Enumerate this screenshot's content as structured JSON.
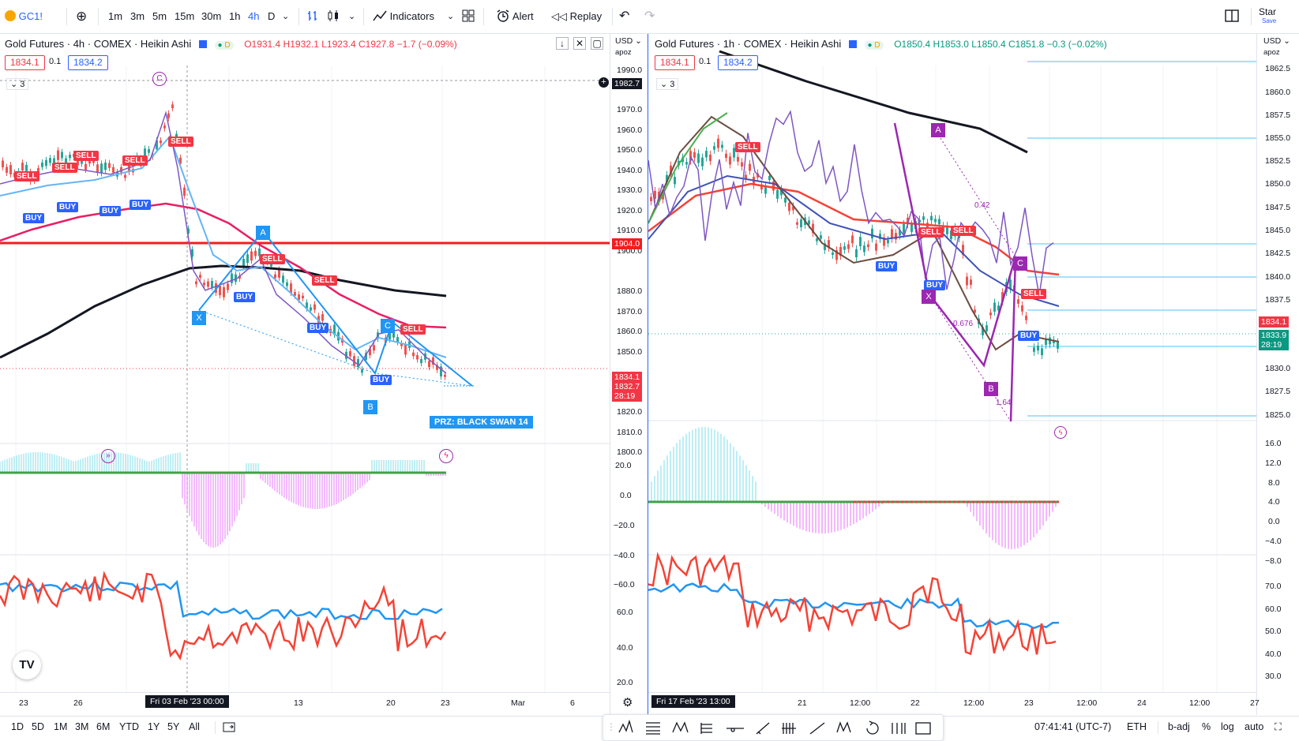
{
  "toolbar": {
    "symbol": "GC1!",
    "intervals": [
      "1m",
      "3m",
      "5m",
      "15m",
      "30m",
      "1h",
      "4h",
      "D"
    ],
    "active_interval": "4h",
    "indicators": "Indicators",
    "alert": "Alert",
    "replay": "Replay",
    "star": "Star",
    "save": "Save"
  },
  "left": {
    "title": "Gold Futures · 4h · COMEX · Heikin Ashi",
    "ohlc": "O1931.4 H1932.1 L1923.4 C1927.8 −1.7 (−0.09%)",
    "bid": "1834.1",
    "spread": "0.1",
    "ask": "1834.2",
    "collapse_count": "3",
    "currency": "USD",
    "scale_mode": "apoz",
    "price_labels": [
      "1990.0",
      "1970.0",
      "1960.0",
      "1950.0",
      "1940.0",
      "1930.0",
      "1920.0",
      "1910.0",
      "1900.0",
      "1880.0",
      "1870.0",
      "1860.0",
      "1850.0",
      "1820.0",
      "1810.0",
      "1800.0"
    ],
    "cursor_price": "1982.7",
    "line_price": "1904.0",
    "last_price": "1834.1",
    "last_price2": "1832.7",
    "countdown": "28:19",
    "osc_labels": [
      "20.0",
      "0.0",
      "−20.0",
      "−40.0",
      "−60.0"
    ],
    "rsi_labels": [
      "60.0",
      "40.0",
      "20.0"
    ],
    "time_labels": [
      "23",
      "26",
      "13",
      "20",
      "23",
      "Mar",
      "6"
    ],
    "cursor_time": "Fri 03 Feb '23   00:00",
    "prz_label": "PRZ: BLACK SWAN 14",
    "points": [
      "X",
      "A",
      "B",
      "C"
    ],
    "circle_label": "C"
  },
  "right": {
    "title": "Gold Futures · 1h · COMEX · Heikin Ashi",
    "ohlc": "O1850.4 H1853.0 L1850.4 C1851.8 −0.3 (−0.02%)",
    "bid": "1834.1",
    "spread": "0.1",
    "ask": "1834.2",
    "collapse_count": "3",
    "currency": "USD",
    "scale_mode": "apoz",
    "price_labels": [
      "1862.5",
      "1860.0",
      "1857.5",
      "1855.0",
      "1852.5",
      "1850.0",
      "1847.5",
      "1845.0",
      "1842.5",
      "1840.0",
      "1837.5",
      "1830.0",
      "1827.5",
      "1825.0"
    ],
    "last_price": "1834.1",
    "last_price2": "1833.9",
    "countdown": "28:19",
    "osc_labels": [
      "16.0",
      "12.0",
      "8.0",
      "4.0",
      "0.0",
      "−4.0",
      "−8.0"
    ],
    "rsi_labels": [
      "70.0",
      "60.0",
      "50.0",
      "40.0",
      "30.0"
    ],
    "time_labels": [
      "21",
      "12:00",
      "22",
      "12:00",
      "23",
      "12:00",
      "24",
      "12:00",
      "27"
    ],
    "cursor_time": "Fri 17 Feb '23   13:00",
    "points": [
      "A",
      "X",
      "B",
      "C"
    ],
    "ratio_labels": [
      "0.42",
      "0.676",
      "1.64"
    ]
  },
  "bottom": {
    "ranges": [
      "1D",
      "5D",
      "1M",
      "3M",
      "6M",
      "YTD",
      "1Y",
      "5Y",
      "All"
    ],
    "clock": "07:41:41 (UTC-7)",
    "session": "ETH",
    "adj": "b-adj",
    "pct": "%",
    "log": "log",
    "auto": "auto"
  },
  "colors": {
    "sell": "#f23645",
    "buy": "#2962ff",
    "harmonic_left": "#2196f3",
    "harmonic_right": "#9c27b0",
    "hline": "#f21e1e"
  }
}
